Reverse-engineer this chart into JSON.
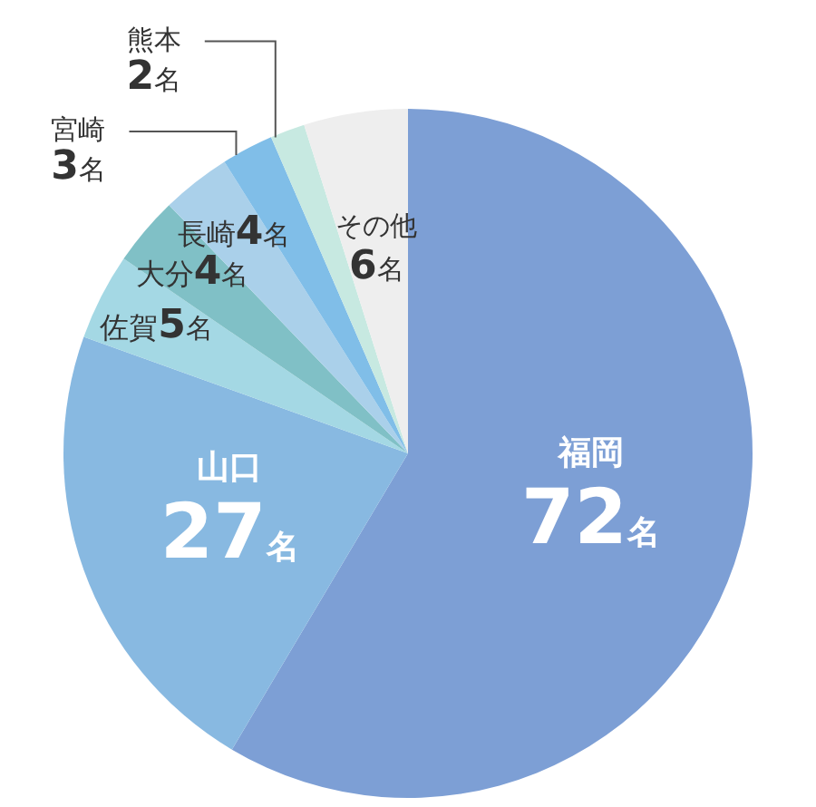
{
  "chart_data": {
    "type": "pie",
    "categories": [
      "福岡",
      "山口",
      "佐賀",
      "大分",
      "長崎",
      "宮崎",
      "熊本",
      "その他"
    ],
    "values": [
      72,
      27,
      5,
      4,
      4,
      3,
      2,
      6
    ],
    "colors": [
      "#7d9fd5",
      "#88b9e1",
      "#a4d8e4",
      "#80c0c6",
      "#aad0ea",
      "#80bee8",
      "#c7e9e1",
      "#eeeeee"
    ],
    "value_labels": [
      "72名",
      "27名",
      "5名",
      "4名",
      "4名",
      "3名",
      "2名",
      "6名"
    ]
  }
}
